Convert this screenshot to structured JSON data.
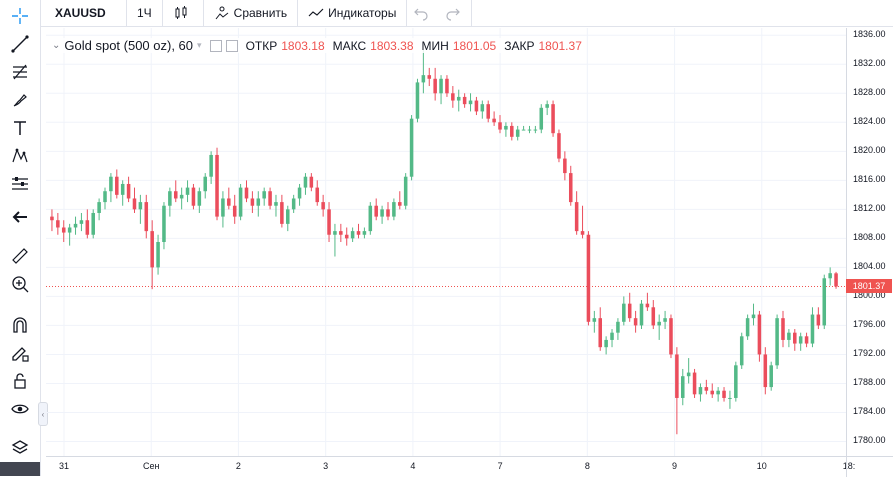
{
  "symbol": "XAUUSD",
  "interval": "1Ч",
  "toolbar": {
    "compare_label": "Сравнить",
    "indicators_label": "Индикаторы"
  },
  "legend": {
    "title": "Gold spot (500 oz), 60",
    "open_label": "ОТКР",
    "open_value": "1803.18",
    "high_label": "МАКС",
    "high_value": "1803.38",
    "low_label": "МИН",
    "low_value": "1801.05",
    "close_label": "ЗАКР",
    "close_value": "1801.37"
  },
  "price_tag": "1801.37",
  "colors": {
    "up": "#53b987",
    "down": "#eb4d5c",
    "last_price_line": "#ef5350"
  },
  "left_tools": [
    "crosshair-icon",
    "trend-line-icon",
    "fib-icon",
    "brush-icon",
    "text-icon",
    "pattern-icon",
    "measure-tool-icon",
    "back-arrow-icon",
    "ruler-icon",
    "zoom-icon",
    "magnet-icon",
    "lock-draw-icon",
    "lock-icon",
    "eye-icon",
    "layers-icon"
  ],
  "chart_data": {
    "type": "candlestick",
    "title": "Gold spot (500 oz), 60",
    "ylim": [
      1778,
      1837
    ],
    "y_ticks": [
      "1836.00",
      "1832.00",
      "1828.00",
      "1824.00",
      "1820.00",
      "1816.00",
      "1812.00",
      "1808.00",
      "1804.00",
      "1800.00",
      "1796.00",
      "1792.00",
      "1788.00",
      "1784.00",
      "1780.00"
    ],
    "x_ticks": [
      "31",
      "Сен",
      "2",
      "3",
      "4",
      "7",
      "8",
      "9",
      "10",
      "18:"
    ],
    "last_price": 1801.37,
    "ohlc": [
      [
        1811.0,
        1812.0,
        1809.0,
        1810.5
      ],
      [
        1810.5,
        1811.5,
        1808.5,
        1809.5
      ],
      [
        1809.5,
        1810.5,
        1807.5,
        1808.8
      ],
      [
        1808.8,
        1810.0,
        1807.0,
        1809.5
      ],
      [
        1809.5,
        1811.0,
        1808.5,
        1810.0
      ],
      [
        1810.0,
        1811.5,
        1809.0,
        1810.5
      ],
      [
        1810.5,
        1812.0,
        1808.0,
        1808.5
      ],
      [
        1808.5,
        1812.0,
        1808.0,
        1811.5
      ],
      [
        1811.5,
        1813.5,
        1810.5,
        1813.0
      ],
      [
        1813.0,
        1815.0,
        1812.0,
        1814.5
      ],
      [
        1814.5,
        1817.0,
        1813.0,
        1816.5
      ],
      [
        1816.5,
        1817.5,
        1813.5,
        1814.0
      ],
      [
        1814.0,
        1816.0,
        1812.5,
        1815.5
      ],
      [
        1815.5,
        1816.5,
        1813.0,
        1813.5
      ],
      [
        1813.5,
        1815.0,
        1811.5,
        1812.0
      ],
      [
        1812.0,
        1814.0,
        1810.0,
        1813.0
      ],
      [
        1813.0,
        1814.0,
        1808.0,
        1809.0
      ],
      [
        1809.0,
        1810.5,
        1801.0,
        1804.0
      ],
      [
        1804.0,
        1808.5,
        1803.0,
        1807.5
      ],
      [
        1807.5,
        1813.0,
        1806.5,
        1812.5
      ],
      [
        1812.5,
        1815.0,
        1811.0,
        1814.5
      ],
      [
        1814.5,
        1816.0,
        1813.0,
        1813.5
      ],
      [
        1813.5,
        1815.0,
        1812.0,
        1814.0
      ],
      [
        1814.0,
        1816.0,
        1813.0,
        1815.0
      ],
      [
        1815.0,
        1815.5,
        1812.0,
        1812.5
      ],
      [
        1812.5,
        1815.0,
        1811.5,
        1814.5
      ],
      [
        1814.5,
        1817.0,
        1813.5,
        1816.5
      ],
      [
        1816.5,
        1820.0,
        1815.5,
        1819.5
      ],
      [
        1819.5,
        1820.5,
        1810.5,
        1811.0
      ],
      [
        1811.0,
        1814.5,
        1809.5,
        1813.5
      ],
      [
        1813.5,
        1815.0,
        1812.0,
        1812.5
      ],
      [
        1812.5,
        1814.0,
        1810.0,
        1811.0
      ],
      [
        1811.0,
        1815.5,
        1810.5,
        1815.0
      ],
      [
        1815.0,
        1816.0,
        1813.0,
        1813.5
      ],
      [
        1813.5,
        1814.5,
        1811.5,
        1812.5
      ],
      [
        1812.5,
        1814.5,
        1811.0,
        1813.5
      ],
      [
        1813.5,
        1815.0,
        1812.5,
        1814.5
      ],
      [
        1814.5,
        1815.0,
        1812.0,
        1812.5
      ],
      [
        1812.5,
        1814.0,
        1811.0,
        1813.0
      ],
      [
        1813.0,
        1814.0,
        1809.5,
        1810.0
      ],
      [
        1810.0,
        1812.5,
        1809.0,
        1812.0
      ],
      [
        1812.0,
        1814.0,
        1811.5,
        1813.5
      ],
      [
        1813.5,
        1815.5,
        1812.5,
        1815.0
      ],
      [
        1815.0,
        1817.0,
        1814.0,
        1816.5
      ],
      [
        1816.5,
        1817.0,
        1814.5,
        1815.0
      ],
      [
        1815.0,
        1816.0,
        1812.5,
        1813.0
      ],
      [
        1813.0,
        1814.0,
        1811.0,
        1812.0
      ],
      [
        1812.0,
        1813.0,
        1807.5,
        1808.5
      ],
      [
        1808.5,
        1810.0,
        1805.5,
        1809.0
      ],
      [
        1809.0,
        1810.0,
        1807.5,
        1808.5
      ],
      [
        1808.5,
        1809.5,
        1807.0,
        1808.0
      ],
      [
        1808.0,
        1809.5,
        1807.5,
        1809.0
      ],
      [
        1809.0,
        1810.0,
        1808.0,
        1808.5
      ],
      [
        1808.5,
        1809.5,
        1808.0,
        1809.0
      ],
      [
        1809.0,
        1813.0,
        1808.5,
        1812.5
      ],
      [
        1812.5,
        1813.5,
        1810.5,
        1811.0
      ],
      [
        1811.0,
        1812.5,
        1810.0,
        1812.0
      ],
      [
        1812.0,
        1813.0,
        1810.5,
        1811.0
      ],
      [
        1811.0,
        1813.5,
        1810.5,
        1813.0
      ],
      [
        1813.0,
        1814.5,
        1812.0,
        1812.5
      ],
      [
        1812.5,
        1817.0,
        1812.0,
        1816.5
      ],
      [
        1816.5,
        1825.0,
        1816.0,
        1824.5
      ],
      [
        1824.5,
        1830.0,
        1824.0,
        1829.5
      ],
      [
        1829.5,
        1834.0,
        1828.0,
        1830.5
      ],
      [
        1830.5,
        1831.5,
        1829.0,
        1830.0
      ],
      [
        1830.0,
        1831.5,
        1827.0,
        1828.0
      ],
      [
        1828.0,
        1830.5,
        1826.5,
        1830.0
      ],
      [
        1830.0,
        1830.5,
        1827.5,
        1828.0
      ],
      [
        1828.0,
        1829.0,
        1826.0,
        1827.0
      ],
      [
        1827.0,
        1828.5,
        1825.5,
        1827.5
      ],
      [
        1827.5,
        1828.0,
        1826.0,
        1826.5
      ],
      [
        1826.5,
        1828.0,
        1825.5,
        1827.0
      ],
      [
        1827.0,
        1827.5,
        1825.0,
        1825.5
      ],
      [
        1825.5,
        1827.0,
        1824.5,
        1826.5
      ],
      [
        1826.5,
        1827.0,
        1824.0,
        1824.5
      ],
      [
        1824.5,
        1825.5,
        1823.5,
        1824.0
      ],
      [
        1824.0,
        1825.0,
        1822.5,
        1823.0
      ],
      [
        1823.0,
        1824.0,
        1822.0,
        1823.5
      ],
      [
        1823.5,
        1824.0,
        1821.5,
        1822.0
      ],
      [
        1822.0,
        1823.5,
        1821.5,
        1823.0
      ],
      [
        1823.0,
        1823.5,
        1823.0,
        1823.0
      ],
      [
        1823.0,
        1823.5,
        1822.5,
        1823.0
      ],
      [
        1823.0,
        1823.5,
        1822.5,
        1823.0
      ],
      [
        1823.0,
        1826.5,
        1822.5,
        1826.0
      ],
      [
        1826.0,
        1827.0,
        1825.0,
        1826.5
      ],
      [
        1826.5,
        1827.0,
        1822.0,
        1822.5
      ],
      [
        1822.5,
        1823.0,
        1818.5,
        1819.0
      ],
      [
        1819.0,
        1820.0,
        1816.0,
        1817.0
      ],
      [
        1817.0,
        1818.0,
        1812.5,
        1813.0
      ],
      [
        1813.0,
        1814.5,
        1808.5,
        1809.0
      ],
      [
        1809.0,
        1812.5,
        1808.0,
        1808.5
      ],
      [
        1808.5,
        1809.0,
        1796.0,
        1796.5
      ],
      [
        1796.5,
        1798.0,
        1795.0,
        1797.0
      ],
      [
        1797.0,
        1798.5,
        1792.5,
        1793.0
      ],
      [
        1793.0,
        1794.5,
        1792.0,
        1794.0
      ],
      [
        1794.0,
        1795.5,
        1793.0,
        1795.0
      ],
      [
        1795.0,
        1797.0,
        1794.0,
        1796.5
      ],
      [
        1796.5,
        1800.0,
        1796.0,
        1799.0
      ],
      [
        1799.0,
        1800.5,
        1796.5,
        1797.0
      ],
      [
        1797.0,
        1798.0,
        1795.0,
        1796.0
      ],
      [
        1796.0,
        1799.5,
        1795.5,
        1799.0
      ],
      [
        1799.0,
        1800.5,
        1798.0,
        1798.5
      ],
      [
        1798.5,
        1799.5,
        1795.5,
        1796.0
      ],
      [
        1796.0,
        1797.5,
        1794.0,
        1796.5
      ],
      [
        1796.5,
        1798.0,
        1795.5,
        1797.0
      ],
      [
        1797.0,
        1797.5,
        1791.5,
        1792.0
      ],
      [
        1792.0,
        1793.0,
        1781.0,
        1786.0
      ],
      [
        1786.0,
        1790.0,
        1785.0,
        1789.0
      ],
      [
        1789.0,
        1791.5,
        1788.0,
        1789.5
      ],
      [
        1789.5,
        1790.0,
        1786.0,
        1786.5
      ],
      [
        1786.5,
        1788.0,
        1785.5,
        1787.5
      ],
      [
        1787.5,
        1788.5,
        1786.5,
        1787.0
      ],
      [
        1787.0,
        1788.0,
        1786.0,
        1786.5
      ],
      [
        1786.5,
        1787.5,
        1785.5,
        1787.0
      ],
      [
        1787.0,
        1787.5,
        1785.5,
        1786.0
      ],
      [
        1786.0,
        1787.0,
        1784.5,
        1786.0
      ],
      [
        1786.0,
        1791.0,
        1785.5,
        1790.5
      ],
      [
        1790.5,
        1795.0,
        1790.0,
        1794.5
      ],
      [
        1794.5,
        1797.5,
        1794.0,
        1797.0
      ],
      [
        1797.0,
        1799.0,
        1796.0,
        1797.5
      ],
      [
        1797.5,
        1798.0,
        1791.0,
        1792.0
      ],
      [
        1792.0,
        1793.0,
        1786.5,
        1787.5
      ],
      [
        1787.5,
        1791.0,
        1787.0,
        1790.5
      ],
      [
        1790.5,
        1797.5,
        1790.0,
        1797.0
      ],
      [
        1797.0,
        1798.0,
        1793.0,
        1794.0
      ],
      [
        1794.0,
        1795.5,
        1793.0,
        1795.0
      ],
      [
        1795.0,
        1795.5,
        1792.5,
        1793.5
      ],
      [
        1793.5,
        1795.0,
        1792.5,
        1794.5
      ],
      [
        1794.5,
        1795.0,
        1793.0,
        1793.5
      ],
      [
        1793.5,
        1798.5,
        1793.0,
        1797.5
      ],
      [
        1797.5,
        1798.5,
        1795.5,
        1796.0
      ],
      [
        1796.0,
        1803.0,
        1795.5,
        1802.5
      ],
      [
        1802.5,
        1804.0,
        1801.5,
        1803.2
      ],
      [
        1803.18,
        1803.38,
        1801.05,
        1801.37
      ]
    ]
  }
}
